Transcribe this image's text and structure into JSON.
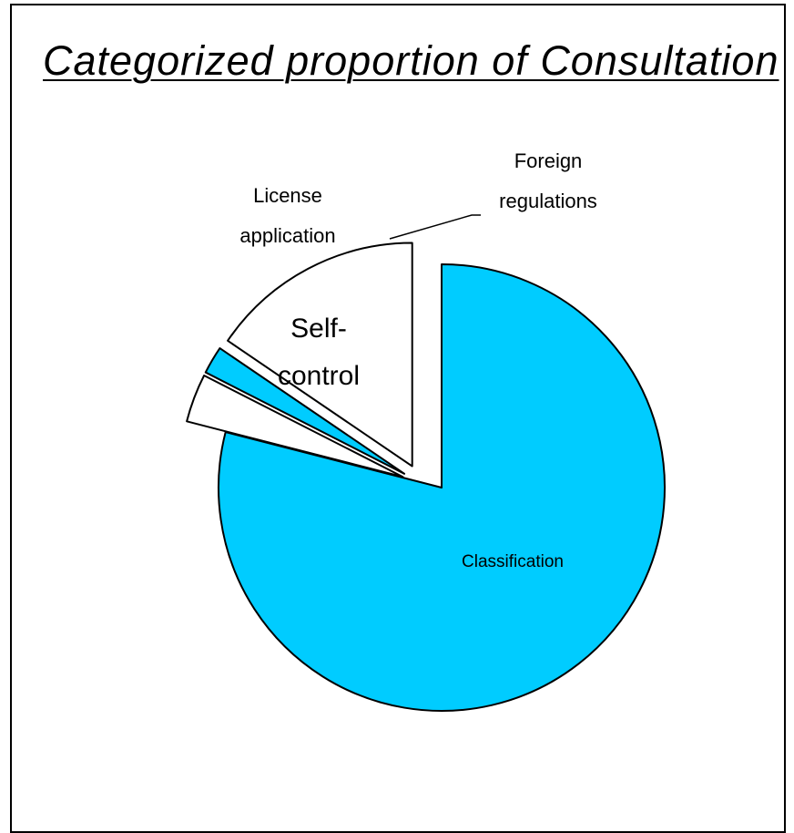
{
  "chart_data": {
    "type": "pie",
    "title": "Categorized proportion of Consultation",
    "slices": [
      {
        "name": "Classification",
        "value": 79,
        "color": "#00CCFF",
        "label_lines": [
          "Classification"
        ],
        "exploded": false
      },
      {
        "name": "Foreign regulations",
        "value": 3.5,
        "color": "#FFFFFF",
        "label_lines": [
          "Foreign",
          "regulations"
        ],
        "exploded": true
      },
      {
        "name": "License application",
        "value": 2,
        "color": "#00CCFF",
        "label_lines": [
          "License",
          "application"
        ],
        "exploded": true
      },
      {
        "name": "Self-control",
        "value": 15.5,
        "color": "#FFFFFF",
        "label_lines": [
          "Self-",
          "control"
        ],
        "exploded": true
      }
    ],
    "legend": "none",
    "grid": false
  }
}
